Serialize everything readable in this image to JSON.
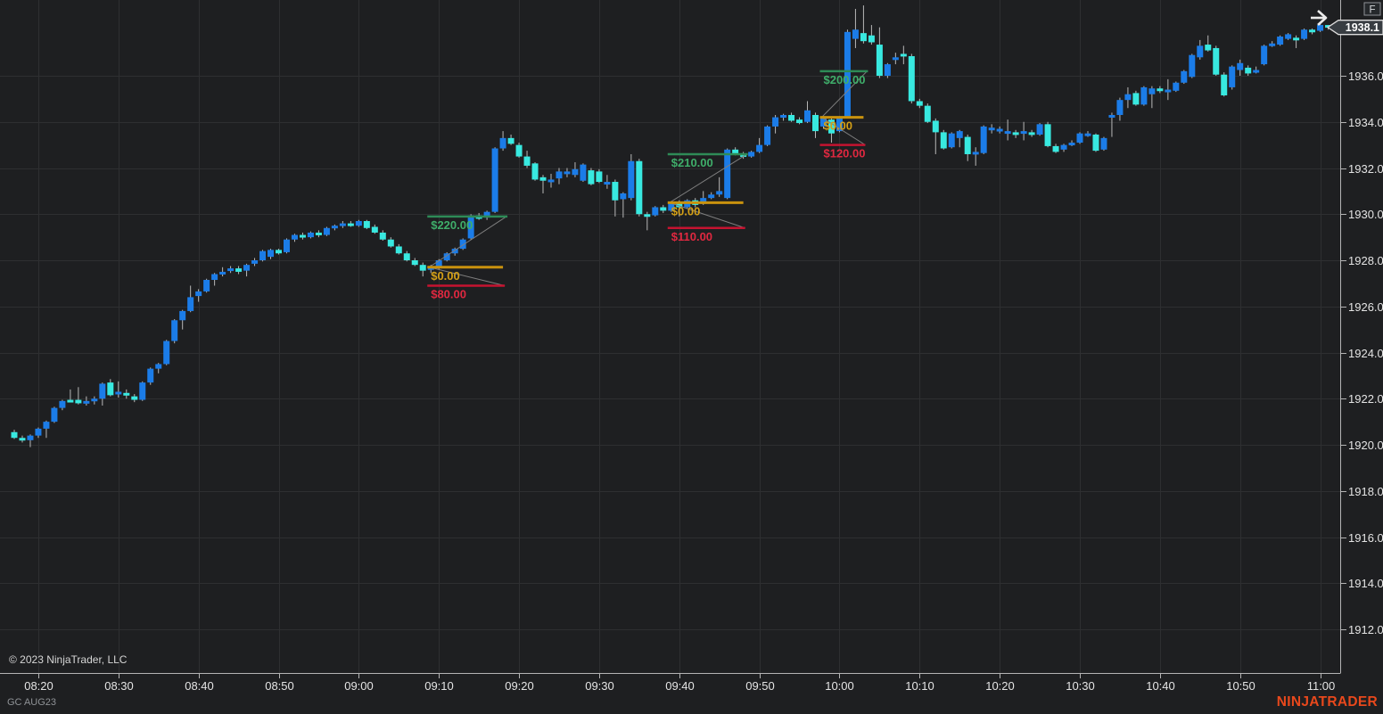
{
  "window": {
    "copyright": "© 2023 NinjaTrader, LLC",
    "instrument_label": "GC AUG23",
    "brand_logo": "NINJATRADER",
    "panel_badge": "F"
  },
  "colors": {
    "background": "#1e1f21",
    "grid": "#2e2f31",
    "axis_border": "#b4b4b4",
    "axis_text": "#e4e4e4",
    "up_candle": "#1b7ce8",
    "down_candle": "#38e9e0",
    "wick": "#b8b8b8",
    "target_line": "#2e8b57",
    "target_text": "#3fae6a",
    "entry_line": "#c9920e",
    "entry_text": "#d4a017",
    "stop_line": "#c51330",
    "stop_text": "#e02840",
    "connector": "#7f7f7f",
    "price_marker_bg": "#383d42",
    "price_marker_border": "#dcdcdc",
    "logo": "#e8481c"
  },
  "chart_data": {
    "type": "candlestick",
    "instrument": "GC AUG23",
    "bar_interval_min": 1,
    "start_time": "08:17",
    "x_axis": {
      "labels": [
        "08:20",
        "08:30",
        "08:40",
        "08:50",
        "09:00",
        "09:10",
        "09:20",
        "09:30",
        "09:40",
        "09:50",
        "10:00",
        "10:10",
        "10:20",
        "10:30",
        "10:40",
        "10:50",
        "11:00"
      ]
    },
    "y_axis": {
      "ticks": [
        1912,
        1914,
        1916,
        1918,
        1920,
        1922,
        1924,
        1926,
        1928,
        1930,
        1932,
        1934,
        1936
      ],
      "min": 1911,
      "max": 1939.2,
      "last_price": "1938.1"
    },
    "candles": [
      [
        1920.55,
        1920.65,
        1920.25,
        1920.3
      ],
      [
        1920.3,
        1920.4,
        1920.1,
        1920.2
      ],
      [
        1920.2,
        1920.45,
        1919.9,
        1920.4
      ],
      [
        1920.4,
        1920.75,
        1920.3,
        1920.7
      ],
      [
        1920.7,
        1921.05,
        1920.3,
        1921.0
      ],
      [
        1921.0,
        1921.65,
        1920.95,
        1921.6
      ],
      [
        1921.6,
        1921.95,
        1921.5,
        1921.9
      ],
      [
        1921.95,
        1922.4,
        1921.85,
        1921.9
      ],
      [
        1921.95,
        1922.5,
        1921.75,
        1921.8
      ],
      [
        1921.85,
        1922.1,
        1921.7,
        1921.9
      ],
      [
        1921.9,
        1922.1,
        1921.75,
        1922.0
      ],
      [
        1922.0,
        1922.7,
        1921.7,
        1922.65
      ],
      [
        1922.7,
        1922.85,
        1922.1,
        1922.15
      ],
      [
        1922.3,
        1922.75,
        1922.05,
        1922.3
      ],
      [
        1922.25,
        1922.4,
        1922.0,
        1922.2
      ],
      [
        1922.1,
        1922.2,
        1921.85,
        1921.95
      ],
      [
        1921.95,
        1922.75,
        1921.9,
        1922.7
      ],
      [
        1922.7,
        1923.35,
        1922.6,
        1923.3
      ],
      [
        1923.3,
        1923.55,
        1923.1,
        1923.5
      ],
      [
        1923.5,
        1924.55,
        1923.45,
        1924.5
      ],
      [
        1924.5,
        1925.45,
        1924.4,
        1925.4
      ],
      [
        1925.4,
        1925.85,
        1925.0,
        1925.8
      ],
      [
        1925.8,
        1926.9,
        1925.75,
        1926.4
      ],
      [
        1926.45,
        1926.75,
        1926.2,
        1926.65
      ],
      [
        1926.65,
        1927.2,
        1926.6,
        1927.15
      ],
      [
        1927.15,
        1927.45,
        1926.9,
        1927.4
      ],
      [
        1927.45,
        1927.7,
        1927.3,
        1927.5
      ],
      [
        1927.55,
        1927.75,
        1927.45,
        1927.65
      ],
      [
        1927.65,
        1927.75,
        1927.4,
        1927.5
      ],
      [
        1927.55,
        1927.85,
        1927.3,
        1927.8
      ],
      [
        1927.85,
        1928.1,
        1927.75,
        1928.0
      ],
      [
        1928.0,
        1928.45,
        1927.95,
        1928.4
      ],
      [
        1928.15,
        1928.5,
        1928.05,
        1928.45
      ],
      [
        1928.45,
        1928.5,
        1928.25,
        1928.3
      ],
      [
        1928.35,
        1928.95,
        1928.3,
        1928.9
      ],
      [
        1928.9,
        1929.15,
        1928.8,
        1929.1
      ],
      [
        1929.1,
        1929.2,
        1928.9,
        1929.0
      ],
      [
        1929.0,
        1929.25,
        1928.95,
        1929.2
      ],
      [
        1929.2,
        1929.3,
        1929.0,
        1929.1
      ],
      [
        1929.1,
        1929.45,
        1929.05,
        1929.4
      ],
      [
        1929.4,
        1929.55,
        1929.3,
        1929.5
      ],
      [
        1929.5,
        1929.7,
        1929.4,
        1929.6
      ],
      [
        1929.6,
        1929.7,
        1929.45,
        1929.5
      ],
      [
        1929.5,
        1929.75,
        1929.45,
        1929.7
      ],
      [
        1929.7,
        1929.75,
        1929.35,
        1929.4
      ],
      [
        1929.45,
        1929.55,
        1929.15,
        1929.2
      ],
      [
        1929.2,
        1929.3,
        1928.85,
        1928.9
      ],
      [
        1928.9,
        1929.0,
        1928.55,
        1928.6
      ],
      [
        1928.6,
        1928.7,
        1928.25,
        1928.3
      ],
      [
        1928.3,
        1928.4,
        1927.95,
        1928.0
      ],
      [
        1928.0,
        1928.1,
        1927.75,
        1927.8
      ],
      [
        1927.8,
        1927.9,
        1927.3,
        1927.55
      ],
      [
        1927.6,
        1927.8,
        1927.45,
        1927.7
      ],
      [
        1927.7,
        1928.05,
        1927.6,
        1928.0
      ],
      [
        1928.0,
        1928.35,
        1927.95,
        1928.3
      ],
      [
        1928.3,
        1928.55,
        1928.2,
        1928.5
      ],
      [
        1928.5,
        1928.95,
        1928.45,
        1928.9
      ],
      [
        1928.95,
        1930.0,
        1928.9,
        1929.95
      ],
      [
        1929.95,
        1930.05,
        1929.75,
        1929.8
      ],
      [
        1929.85,
        1930.15,
        1929.75,
        1930.1
      ],
      [
        1930.1,
        1932.9,
        1930.05,
        1932.85
      ],
      [
        1932.85,
        1933.6,
        1932.75,
        1933.3
      ],
      [
        1933.3,
        1933.45,
        1933.0,
        1933.05
      ],
      [
        1933.0,
        1933.1,
        1932.45,
        1932.5
      ],
      [
        1932.5,
        1932.75,
        1932.0,
        1932.1
      ],
      [
        1932.2,
        1932.25,
        1931.45,
        1931.5
      ],
      [
        1931.6,
        1931.7,
        1930.9,
        1931.45
      ],
      [
        1931.45,
        1931.75,
        1931.15,
        1931.5
      ],
      [
        1931.55,
        1932.0,
        1931.3,
        1931.85
      ],
      [
        1931.85,
        1932.0,
        1931.6,
        1931.85
      ],
      [
        1931.7,
        1932.25,
        1931.6,
        1931.95
      ],
      [
        1931.45,
        1932.2,
        1931.4,
        1932.15
      ],
      [
        1931.9,
        1932.0,
        1931.25,
        1931.3
      ],
      [
        1931.85,
        1931.95,
        1931.35,
        1931.4
      ],
      [
        1931.4,
        1931.7,
        1931.1,
        1931.4
      ],
      [
        1931.4,
        1931.5,
        1929.9,
        1930.6
      ],
      [
        1930.65,
        1930.95,
        1929.85,
        1930.9
      ],
      [
        1930.7,
        1932.6,
        1930.6,
        1932.3
      ],
      [
        1932.3,
        1932.4,
        1929.9,
        1930.0
      ],
      [
        1930.0,
        1930.1,
        1929.3,
        1929.95
      ],
      [
        1929.95,
        1930.35,
        1929.9,
        1930.3
      ],
      [
        1930.3,
        1930.4,
        1930.05,
        1930.15
      ],
      [
        1930.15,
        1930.55,
        1930.1,
        1930.5
      ],
      [
        1930.5,
        1930.6,
        1929.9,
        1930.3
      ],
      [
        1930.3,
        1930.65,
        1930.25,
        1930.6
      ],
      [
        1930.6,
        1930.7,
        1930.3,
        1930.4
      ],
      [
        1930.45,
        1931.0,
        1930.4,
        1930.7
      ],
      [
        1930.7,
        1930.95,
        1930.65,
        1930.85
      ],
      [
        1930.85,
        1931.6,
        1930.75,
        1931.0
      ],
      [
        1930.7,
        1932.85,
        1930.65,
        1932.8
      ],
      [
        1932.8,
        1932.9,
        1932.55,
        1932.6
      ],
      [
        1932.6,
        1932.7,
        1932.4,
        1932.5
      ],
      [
        1932.5,
        1932.75,
        1932.45,
        1932.7
      ],
      [
        1932.7,
        1933.3,
        1932.65,
        1933.0
      ],
      [
        1933.0,
        1933.85,
        1932.95,
        1933.8
      ],
      [
        1933.8,
        1934.3,
        1933.5,
        1934.2
      ],
      [
        1934.2,
        1934.35,
        1934.05,
        1934.3
      ],
      [
        1934.3,
        1934.4,
        1934.0,
        1934.05
      ],
      [
        1934.1,
        1934.2,
        1933.9,
        1933.95
      ],
      [
        1934.0,
        1934.9,
        1933.95,
        1934.5
      ],
      [
        1934.3,
        1934.4,
        1933.3,
        1933.6
      ],
      [
        1933.8,
        1934.25,
        1933.7,
        1934.2
      ],
      [
        1934.1,
        1934.15,
        1933.1,
        1933.5
      ],
      [
        1933.6,
        1934.25,
        1933.55,
        1934.2
      ],
      [
        1934.2,
        1938.0,
        1934.15,
        1937.9
      ],
      [
        1937.6,
        1938.9,
        1937.2,
        1938.0
      ],
      [
        1937.85,
        1939.05,
        1937.4,
        1937.5
      ],
      [
        1937.75,
        1938.2,
        1937.35,
        1937.45
      ],
      [
        1937.35,
        1938.1,
        1935.9,
        1936.0
      ],
      [
        1936.0,
        1936.55,
        1935.9,
        1936.5
      ],
      [
        1936.7,
        1937.0,
        1936.5,
        1936.8
      ],
      [
        1936.95,
        1937.3,
        1936.5,
        1936.85
      ],
      [
        1936.85,
        1936.95,
        1934.8,
        1934.9
      ],
      [
        1934.9,
        1935.0,
        1934.6,
        1934.7
      ],
      [
        1934.7,
        1934.8,
        1933.95,
        1934.0
      ],
      [
        1934.05,
        1934.15,
        1932.6,
        1933.55
      ],
      [
        1933.55,
        1933.65,
        1932.8,
        1932.85
      ],
      [
        1932.9,
        1933.55,
        1932.85,
        1933.5
      ],
      [
        1933.3,
        1933.65,
        1932.9,
        1933.6
      ],
      [
        1933.35,
        1933.45,
        1932.3,
        1932.6
      ],
      [
        1932.7,
        1932.9,
        1932.1,
        1932.7
      ],
      [
        1932.65,
        1933.85,
        1932.6,
        1933.8
      ],
      [
        1933.7,
        1933.9,
        1933.5,
        1933.75
      ],
      [
        1933.7,
        1933.8,
        1933.5,
        1933.7
      ],
      [
        1933.6,
        1934.1,
        1933.2,
        1933.6
      ],
      [
        1933.55,
        1933.65,
        1933.3,
        1933.5
      ],
      [
        1933.6,
        1934.0,
        1933.2,
        1933.6
      ],
      [
        1933.55,
        1933.65,
        1933.35,
        1933.5
      ],
      [
        1933.45,
        1933.95,
        1933.4,
        1933.9
      ],
      [
        1933.9,
        1934.0,
        1932.9,
        1932.95
      ],
      [
        1932.95,
        1933.05,
        1932.65,
        1932.7
      ],
      [
        1932.8,
        1933.05,
        1932.7,
        1933.0
      ],
      [
        1933.05,
        1933.2,
        1932.95,
        1933.1
      ],
      [
        1933.1,
        1933.55,
        1933.05,
        1933.5
      ],
      [
        1933.5,
        1933.6,
        1933.35,
        1933.5
      ],
      [
        1933.45,
        1933.5,
        1932.7,
        1932.75
      ],
      [
        1932.8,
        1933.35,
        1932.75,
        1933.3
      ],
      [
        1934.25,
        1934.4,
        1933.35,
        1934.3
      ],
      [
        1934.3,
        1935.05,
        1934.05,
        1934.95
      ],
      [
        1934.95,
        1935.5,
        1934.6,
        1935.2
      ],
      [
        1935.25,
        1935.35,
        1934.7,
        1934.75
      ],
      [
        1934.75,
        1935.55,
        1934.7,
        1935.5
      ],
      [
        1935.2,
        1935.55,
        1934.6,
        1935.45
      ],
      [
        1935.45,
        1935.55,
        1935.25,
        1935.35
      ],
      [
        1935.4,
        1935.85,
        1934.95,
        1935.4
      ],
      [
        1935.35,
        1935.75,
        1935.3,
        1935.7
      ],
      [
        1935.7,
        1936.25,
        1935.65,
        1936.2
      ],
      [
        1935.95,
        1936.95,
        1935.9,
        1936.9
      ],
      [
        1936.8,
        1937.55,
        1936.7,
        1937.3
      ],
      [
        1937.35,
        1937.75,
        1937.05,
        1937.1
      ],
      [
        1937.2,
        1937.3,
        1936.0,
        1936.05
      ],
      [
        1936.05,
        1936.15,
        1935.1,
        1935.15
      ],
      [
        1935.5,
        1936.45,
        1935.4,
        1936.4
      ],
      [
        1936.25,
        1936.7,
        1936.0,
        1936.55
      ],
      [
        1936.35,
        1936.45,
        1936.0,
        1936.1
      ],
      [
        1936.2,
        1936.4,
        1936.1,
        1936.25
      ],
      [
        1936.5,
        1937.35,
        1936.45,
        1937.3
      ],
      [
        1937.35,
        1937.5,
        1937.25,
        1937.4
      ],
      [
        1937.35,
        1937.75,
        1937.3,
        1937.7
      ],
      [
        1937.6,
        1937.85,
        1937.55,
        1937.8
      ],
      [
        1937.65,
        1937.75,
        1937.2,
        1937.6
      ],
      [
        1937.6,
        1938.05,
        1937.55,
        1938.0
      ],
      [
        1938.0,
        1938.05,
        1937.8,
        1937.9
      ],
      [
        1937.95,
        1938.25,
        1937.9,
        1938.2
      ],
      [
        1938.2,
        1938.2,
        1938.0,
        1938.1
      ]
    ],
    "trades": [
      {
        "start_time": "09:09",
        "end_time": "09:18",
        "entry_price": 1927.7,
        "target_price": 1929.9,
        "stop_price": 1926.9,
        "target_label": "$220.00",
        "entry_label": "$0.00",
        "stop_label": "$80.00"
      },
      {
        "start_time": "09:39",
        "end_time": "09:48",
        "entry_price": 1930.5,
        "target_price": 1932.6,
        "stop_price": 1929.4,
        "target_label": "$210.00",
        "entry_label": "$0.00",
        "stop_label": "$110.00"
      },
      {
        "start_time": "09:58",
        "end_time": "10:03",
        "entry_price": 1934.2,
        "target_price": 1936.2,
        "stop_price": 1933.0,
        "target_label": "$200.00",
        "entry_label": "$0.00",
        "stop_label": "$120.00"
      }
    ]
  }
}
